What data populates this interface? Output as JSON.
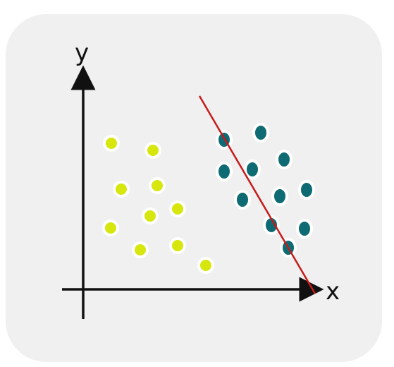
{
  "axes": {
    "y_label": "y",
    "x_label": "x"
  },
  "colors": {
    "card_background": "#f0f0f0",
    "axis": "#111111",
    "class_a": "#d7e60c",
    "class_b": "#0f6b73",
    "point_outline": "#ffffff",
    "separator": "#c81a1a"
  },
  "chart_data": {
    "type": "scatter",
    "grid": false,
    "legend": "none",
    "series": [
      {
        "points": [
          [
            -33,
            213
          ],
          [
            26,
            203
          ],
          [
            -19,
            148
          ],
          [
            32,
            153
          ],
          [
            -34,
            93
          ],
          [
            22,
            110
          ],
          [
            61,
            120
          ],
          [
            8,
            62
          ],
          [
            61,
            68
          ],
          [
            101,
            40
          ]
        ]
      },
      {
        "points": [
          [
            127,
            218
          ],
          [
            179,
            228
          ],
          [
            212,
            190
          ],
          [
            127,
            173
          ],
          [
            167,
            176
          ],
          [
            153,
            133
          ],
          [
            206,
            138
          ],
          [
            244,
            147
          ],
          [
            194,
            97
          ],
          [
            241,
            92
          ],
          [
            218,
            65
          ]
        ]
      }
    ],
    "separator_line": [
      [
        92,
        280
      ],
      [
        256,
        0
      ]
    ]
  }
}
